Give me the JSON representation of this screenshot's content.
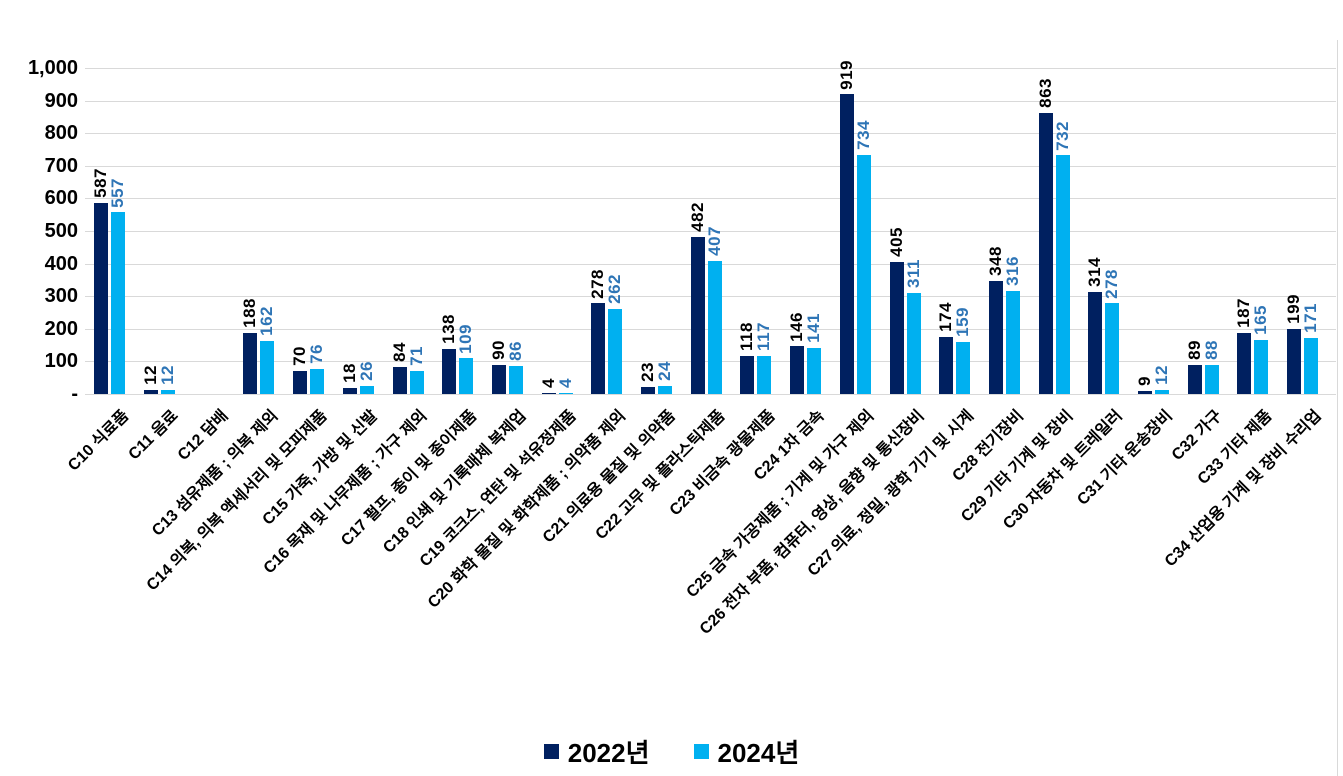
{
  "chart_data": {
    "type": "bar",
    "title": "",
    "xlabel": "",
    "ylabel": "",
    "ylim": [
      0,
      1000
    ],
    "ytick_step": 100,
    "ytick_labels": [
      "-",
      "100",
      "200",
      "300",
      "400",
      "500",
      "600",
      "700",
      "800",
      "900",
      "1,000"
    ],
    "grid": true,
    "legend_position": "bottom",
    "value_labels": "rotated-vertical",
    "categories": [
      "C10 식료품",
      "C11 음료",
      "C12 담배",
      "C13 섬유제품 ; 의복 제외",
      "C14 의복, 의복 액세서리 및 모피제품",
      "C15 가죽, 가방 및 신발",
      "C16 목재 및 나무제품 ; 가구 제외",
      "C17 펄프, 종이 및 종이제품",
      "C18 인쇄 및 기록매체 복제업",
      "C19 코크스, 연탄 및 석유정제품",
      "C20 화학 물질 및 화학제품 ; 의약품 제외",
      "C21 의료용 물질 및 의약품",
      "C22 고무 및 플라스틱제품",
      "C23 비금속 광물제품",
      "C24 1차 금속",
      "C25 금속 가공제품 ; 기계 및 가구 제외",
      "C26 전자 부품, 컴퓨터, 영상, 음향 및 통신장비",
      "C27 의료, 정밀, 광학 기기 및 시계",
      "C28 전기장비",
      "C29 기타 기계 및 장비",
      "C30 자동차 및 트레일러",
      "C31 기타 운송장비",
      "C32 가구",
      "C33 기타 제품",
      "C34 산업용 기계 및 장비 수리업"
    ],
    "series": [
      {
        "name": "2022년",
        "color": "#002060",
        "label_color": "#000000",
        "values": [
          587,
          12,
          null,
          188,
          70,
          18,
          84,
          138,
          90,
          4,
          278,
          23,
          482,
          118,
          146,
          919,
          405,
          174,
          348,
          863,
          314,
          9,
          89,
          187,
          199
        ]
      },
      {
        "name": "2024년",
        "color": "#00B0F0",
        "label_color": "#2E75B6",
        "values": [
          557,
          12,
          null,
          162,
          76,
          26,
          71,
          109,
          86,
          4,
          262,
          24,
          407,
          117,
          141,
          734,
          311,
          159,
          316,
          732,
          278,
          12,
          88,
          165,
          171
        ]
      }
    ],
    "colors": {
      "gridline": "#d9d9d9",
      "axis_text": "#000000"
    }
  }
}
